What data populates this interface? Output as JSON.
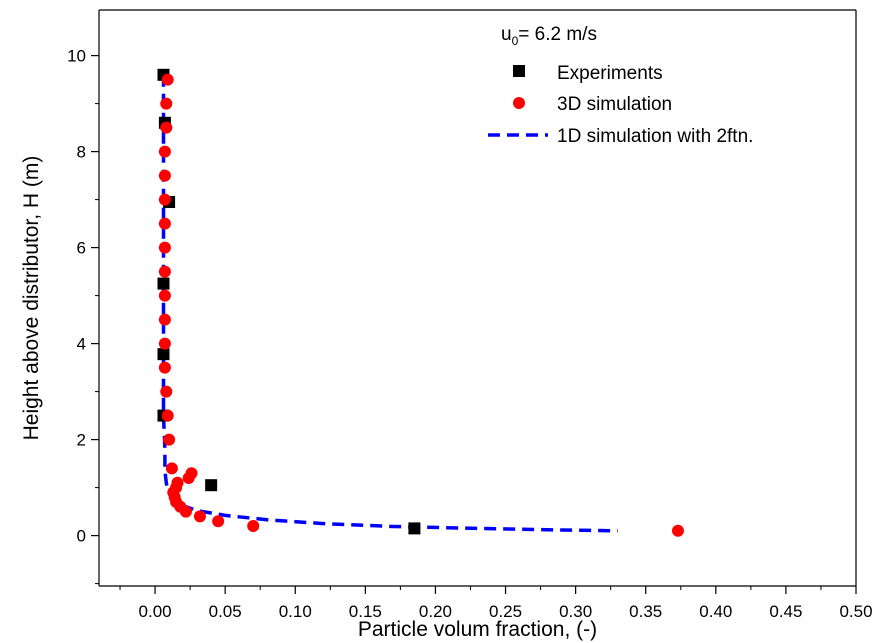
{
  "chart_data": {
    "type": "scatter",
    "title": "",
    "xlabel": "Particle volum fraction, (-)",
    "ylabel": "Height above distributor, H (m)",
    "xlim": [
      -0.04,
      0.5
    ],
    "ylim": [
      -1.05,
      10.95
    ],
    "x_ticks": [
      0.0,
      0.05,
      0.1,
      0.15,
      0.2,
      0.25,
      0.3,
      0.35,
      0.4,
      0.45,
      0.5
    ],
    "x_tick_labels": [
      "0.00",
      "0.05",
      "0.10",
      "0.15",
      "0.20",
      "0.25",
      "0.30",
      "0.35",
      "0.40",
      "0.45",
      "0.50"
    ],
    "y_ticks": [
      0,
      2,
      4,
      6,
      8,
      10
    ],
    "y_tick_labels": [
      "0",
      "2",
      "4",
      "6",
      "8",
      "10"
    ],
    "grid": false,
    "legend_position": "top-right",
    "legend_title_main": "u",
    "legend_title_sub": "0",
    "legend_title_rest": "= 6.2 m/s",
    "series": [
      {
        "name": "Experiments",
        "marker": "square",
        "color": "#000000",
        "points": [
          [
            0.006,
            9.6
          ],
          [
            0.007,
            8.6
          ],
          [
            0.01,
            6.95
          ],
          [
            0.006,
            5.25
          ],
          [
            0.006,
            3.78
          ],
          [
            0.006,
            2.5
          ],
          [
            0.04,
            1.05
          ],
          [
            0.185,
            0.15
          ]
        ]
      },
      {
        "name": "3D simulation",
        "marker": "circle",
        "color": "#ff0000",
        "points": [
          [
            0.009,
            9.5
          ],
          [
            0.008,
            9.0
          ],
          [
            0.008,
            8.5
          ],
          [
            0.007,
            8.0
          ],
          [
            0.007,
            7.5
          ],
          [
            0.007,
            7.0
          ],
          [
            0.007,
            6.5
          ],
          [
            0.007,
            6.0
          ],
          [
            0.007,
            5.5
          ],
          [
            0.007,
            5.0
          ],
          [
            0.007,
            4.5
          ],
          [
            0.007,
            4.0
          ],
          [
            0.007,
            3.5
          ],
          [
            0.008,
            3.0
          ],
          [
            0.009,
            2.5
          ],
          [
            0.01,
            2.0
          ],
          [
            0.012,
            1.4
          ],
          [
            0.026,
            1.3
          ],
          [
            0.024,
            1.2
          ],
          [
            0.016,
            1.1
          ],
          [
            0.015,
            1.0
          ],
          [
            0.013,
            0.9
          ],
          [
            0.014,
            0.8
          ],
          [
            0.015,
            0.7
          ],
          [
            0.018,
            0.6
          ],
          [
            0.022,
            0.5
          ],
          [
            0.032,
            0.4
          ],
          [
            0.045,
            0.3
          ],
          [
            0.07,
            0.2
          ],
          [
            0.373,
            0.1
          ]
        ]
      },
      {
        "name": "1D simulation with 2ftn.",
        "line": "dashed",
        "color": "#0000ff",
        "points": [
          [
            0.006,
            9.6
          ],
          [
            0.006,
            8.0
          ],
          [
            0.006,
            6.0
          ],
          [
            0.006,
            4.0
          ],
          [
            0.006,
            2.5
          ],
          [
            0.007,
            1.8
          ],
          [
            0.007,
            1.35
          ],
          [
            0.008,
            1.1
          ],
          [
            0.009,
            0.95
          ],
          [
            0.011,
            0.82
          ],
          [
            0.014,
            0.72
          ],
          [
            0.02,
            0.62
          ],
          [
            0.03,
            0.52
          ],
          [
            0.05,
            0.42
          ],
          [
            0.08,
            0.33
          ],
          [
            0.12,
            0.25
          ],
          [
            0.17,
            0.19
          ],
          [
            0.23,
            0.15
          ],
          [
            0.28,
            0.12
          ],
          [
            0.33,
            0.1
          ]
        ]
      }
    ]
  }
}
